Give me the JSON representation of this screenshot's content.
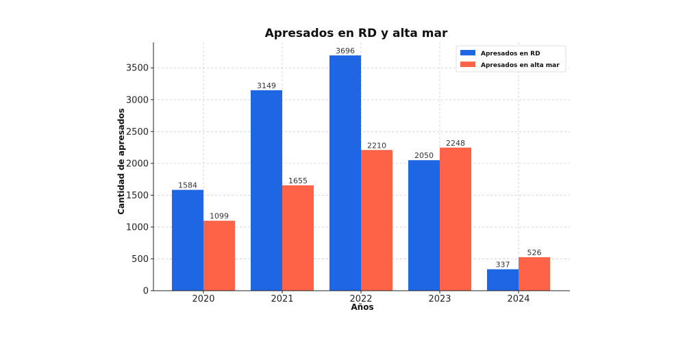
{
  "chart_data": {
    "type": "bar",
    "title": "Apresados en RD y alta mar",
    "xlabel": "Años",
    "ylabel": "Cantidad de apresados",
    "categories": [
      "2020",
      "2021",
      "2022",
      "2023",
      "2024"
    ],
    "series": [
      {
        "name": "Apresados en RD",
        "color": "#1f66e5",
        "values": [
          1584,
          3149,
          3696,
          2050,
          337
        ]
      },
      {
        "name": "Apresados en alta mar",
        "color": "#ff6347",
        "values": [
          1099,
          1655,
          2210,
          2248,
          526
        ]
      }
    ],
    "ylim": [
      0,
      3900
    ],
    "yticks": [
      0,
      500,
      1000,
      1500,
      2000,
      2500,
      3000,
      3500
    ],
    "grid": true,
    "legend_position": "top-right"
  }
}
